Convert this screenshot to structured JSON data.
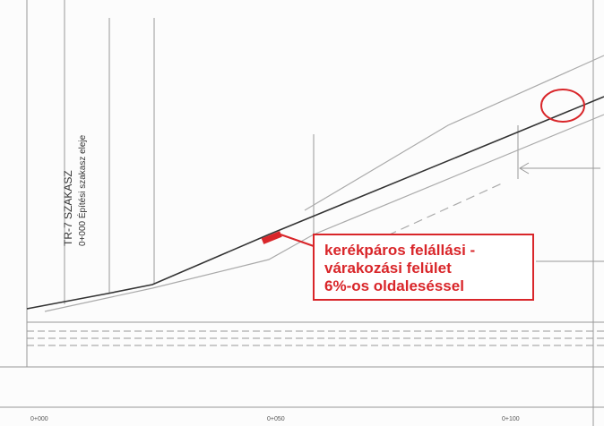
{
  "drawing": {
    "section_title": "TR-7 SZAKASZ",
    "section_subtitle": "0+000 Építési szakasz eleje",
    "annotation": {
      "lines": [
        "kerékpáros felállási -",
        "várakozási felület",
        "6%-os oldaleséssel"
      ]
    },
    "stations": [
      "0+000",
      "0+050",
      "0+100"
    ]
  }
}
